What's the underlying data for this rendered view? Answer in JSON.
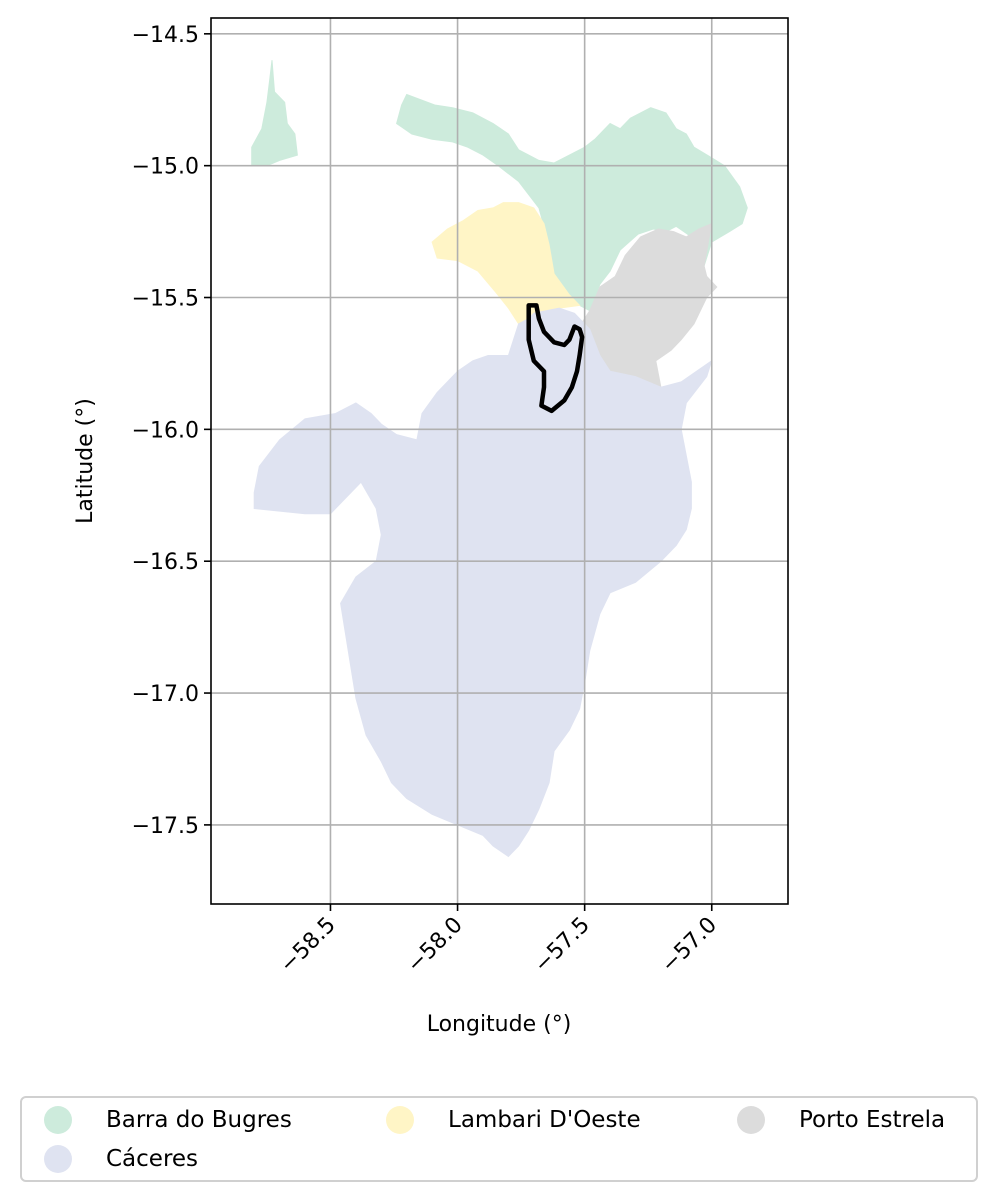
{
  "map": {
    "xlabel": "Longitude (°)",
    "ylabel": "Latitude (°)",
    "xlim": [
      -58.97,
      -56.7
    ],
    "ylim": [
      -17.8,
      -14.44
    ],
    "grid": true,
    "x_ticks": [
      {
        "value": -58.5,
        "label": "−58.5"
      },
      {
        "value": -58.0,
        "label": "−58.0"
      },
      {
        "value": -57.5,
        "label": "−57.5"
      },
      {
        "value": -57.0,
        "label": "−57.0"
      }
    ],
    "y_ticks": [
      {
        "value": -14.5,
        "label": "−14.5"
      },
      {
        "value": -15.0,
        "label": "−15.0"
      },
      {
        "value": -15.5,
        "label": "−15.5"
      },
      {
        "value": -16.0,
        "label": "−16.0"
      },
      {
        "value": -16.5,
        "label": "−16.5"
      },
      {
        "value": -17.0,
        "label": "−17.0"
      },
      {
        "value": -17.5,
        "label": "−17.5"
      }
    ],
    "regions": [
      {
        "name": "Barra do Bugres",
        "color": "#cdebdc",
        "polygons": [
          [
            [
              -58.73,
              -14.6
            ],
            [
              -58.72,
              -14.72
            ],
            [
              -58.68,
              -14.76
            ],
            [
              -58.67,
              -14.84
            ],
            [
              -58.64,
              -14.88
            ],
            [
              -58.63,
              -14.96
            ],
            [
              -58.7,
              -14.98
            ],
            [
              -58.75,
              -15.0
            ],
            [
              -58.81,
              -15.0
            ],
            [
              -58.81,
              -14.93
            ],
            [
              -58.77,
              -14.86
            ],
            [
              -58.75,
              -14.76
            ],
            [
              -58.74,
              -14.68
            ]
          ],
          [
            [
              -58.2,
              -14.73
            ],
            [
              -58.09,
              -14.77
            ],
            [
              -58.02,
              -14.78
            ],
            [
              -57.94,
              -14.8
            ],
            [
              -57.86,
              -14.84
            ],
            [
              -57.8,
              -14.88
            ],
            [
              -57.76,
              -14.94
            ],
            [
              -57.72,
              -14.96
            ],
            [
              -57.68,
              -14.98
            ],
            [
              -57.62,
              -14.99
            ],
            [
              -57.56,
              -14.96
            ],
            [
              -57.5,
              -14.93
            ],
            [
              -57.46,
              -14.9
            ],
            [
              -57.4,
              -14.84
            ],
            [
              -57.36,
              -14.86
            ],
            [
              -57.32,
              -14.82
            ],
            [
              -57.24,
              -14.78
            ],
            [
              -57.18,
              -14.8
            ],
            [
              -57.14,
              -14.86
            ],
            [
              -57.1,
              -14.88
            ],
            [
              -57.07,
              -14.93
            ],
            [
              -57.0,
              -14.97
            ],
            [
              -56.95,
              -15.0
            ],
            [
              -56.89,
              -15.08
            ],
            [
              -56.86,
              -15.16
            ],
            [
              -56.88,
              -15.22
            ],
            [
              -56.93,
              -15.25
            ],
            [
              -57.0,
              -15.29
            ],
            [
              -57.03,
              -15.38
            ],
            [
              -57.08,
              -15.27
            ],
            [
              -57.14,
              -15.23
            ],
            [
              -57.18,
              -15.25
            ],
            [
              -57.23,
              -15.24
            ],
            [
              -57.29,
              -15.26
            ],
            [
              -57.36,
              -15.32
            ],
            [
              -57.4,
              -15.4
            ],
            [
              -57.44,
              -15.45
            ],
            [
              -57.48,
              -15.55
            ],
            [
              -57.52,
              -15.53
            ],
            [
              -57.56,
              -15.49
            ],
            [
              -57.62,
              -15.41
            ],
            [
              -57.64,
              -15.3
            ],
            [
              -57.68,
              -15.16
            ],
            [
              -57.76,
              -15.06
            ],
            [
              -57.84,
              -15.0
            ],
            [
              -57.9,
              -14.96
            ],
            [
              -57.96,
              -14.93
            ],
            [
              -58.02,
              -14.91
            ],
            [
              -58.1,
              -14.9
            ],
            [
              -58.18,
              -14.88
            ],
            [
              -58.24,
              -14.84
            ],
            [
              -58.22,
              -14.77
            ]
          ]
        ]
      },
      {
        "name": "Lambari D'Oeste",
        "color": "#fff5c6",
        "polygons": [
          [
            [
              -57.82,
              -15.14
            ],
            [
              -57.76,
              -15.14
            ],
            [
              -57.7,
              -15.16
            ],
            [
              -57.66,
              -15.22
            ],
            [
              -57.64,
              -15.3
            ],
            [
              -57.62,
              -15.41
            ],
            [
              -57.56,
              -15.49
            ],
            [
              -57.52,
              -15.53
            ],
            [
              -57.6,
              -15.54
            ],
            [
              -57.66,
              -15.56
            ],
            [
              -57.7,
              -15.58
            ],
            [
              -57.74,
              -15.6
            ],
            [
              -57.77,
              -15.72
            ],
            [
              -57.76,
              -15.6
            ],
            [
              -57.8,
              -15.54
            ],
            [
              -57.85,
              -15.48
            ],
            [
              -57.92,
              -15.4
            ],
            [
              -58.0,
              -15.36
            ],
            [
              -58.08,
              -15.35
            ],
            [
              -58.1,
              -15.29
            ],
            [
              -58.04,
              -15.24
            ],
            [
              -57.98,
              -15.21
            ],
            [
              -57.92,
              -15.17
            ],
            [
              -57.86,
              -15.16
            ]
          ]
        ]
      },
      {
        "name": "Porto Estrela",
        "color": "#dcdcdc",
        "polygons": [
          [
            [
              -57.03,
              -15.38
            ],
            [
              -57.0,
              -15.22
            ],
            [
              -57.05,
              -15.24
            ],
            [
              -57.1,
              -15.27
            ],
            [
              -57.15,
              -15.25
            ],
            [
              -57.21,
              -15.24
            ],
            [
              -57.28,
              -15.27
            ],
            [
              -57.34,
              -15.34
            ],
            [
              -57.38,
              -15.42
            ],
            [
              -57.44,
              -15.46
            ],
            [
              -57.48,
              -15.55
            ],
            [
              -57.52,
              -15.61
            ],
            [
              -57.5,
              -15.68
            ],
            [
              -57.46,
              -15.74
            ],
            [
              -57.4,
              -15.78
            ],
            [
              -57.32,
              -15.8
            ],
            [
              -57.26,
              -15.82
            ],
            [
              -57.2,
              -15.84
            ],
            [
              -57.22,
              -15.74
            ],
            [
              -57.16,
              -15.7
            ],
            [
              -57.12,
              -15.66
            ],
            [
              -57.07,
              -15.6
            ],
            [
              -57.02,
              -15.5
            ],
            [
              -56.98,
              -15.46
            ],
            [
              -57.02,
              -15.42
            ]
          ]
        ]
      },
      {
        "name": "Cáceres",
        "color": "#dfe3f1",
        "polygons": [
          [
            [
              -57.7,
              -15.56
            ],
            [
              -57.6,
              -15.54
            ],
            [
              -57.54,
              -15.56
            ],
            [
              -57.48,
              -15.62
            ],
            [
              -57.44,
              -15.72
            ],
            [
              -57.4,
              -15.78
            ],
            [
              -57.3,
              -15.8
            ],
            [
              -57.2,
              -15.84
            ],
            [
              -57.12,
              -15.82
            ],
            [
              -57.06,
              -15.78
            ],
            [
              -57.0,
              -15.74
            ],
            [
              -57.02,
              -15.8
            ],
            [
              -57.1,
              -15.9
            ],
            [
              -57.12,
              -16.0
            ],
            [
              -57.1,
              -16.1
            ],
            [
              -57.08,
              -16.2
            ],
            [
              -57.08,
              -16.3
            ],
            [
              -57.1,
              -16.38
            ],
            [
              -57.14,
              -16.44
            ],
            [
              -57.2,
              -16.5
            ],
            [
              -57.3,
              -16.58
            ],
            [
              -57.4,
              -16.62
            ],
            [
              -57.44,
              -16.7
            ],
            [
              -57.48,
              -16.84
            ],
            [
              -57.5,
              -16.96
            ],
            [
              -57.52,
              -17.06
            ],
            [
              -57.56,
              -17.14
            ],
            [
              -57.62,
              -17.22
            ],
            [
              -57.64,
              -17.34
            ],
            [
              -57.68,
              -17.44
            ],
            [
              -57.72,
              -17.52
            ],
            [
              -57.76,
              -17.58
            ],
            [
              -57.8,
              -17.62
            ],
            [
              -57.86,
              -17.58
            ],
            [
              -57.9,
              -17.54
            ],
            [
              -58.0,
              -17.5
            ],
            [
              -58.1,
              -17.46
            ],
            [
              -58.2,
              -17.4
            ],
            [
              -58.26,
              -17.34
            ],
            [
              -58.3,
              -17.26
            ],
            [
              -58.36,
              -17.16
            ],
            [
              -58.4,
              -17.02
            ],
            [
              -58.42,
              -16.9
            ],
            [
              -58.44,
              -16.78
            ],
            [
              -58.46,
              -16.66
            ],
            [
              -58.4,
              -16.56
            ],
            [
              -58.32,
              -16.5
            ],
            [
              -58.3,
              -16.4
            ],
            [
              -58.32,
              -16.3
            ],
            [
              -58.38,
              -16.2
            ],
            [
              -58.5,
              -16.32
            ],
            [
              -58.6,
              -16.32
            ],
            [
              -58.8,
              -16.3
            ],
            [
              -58.8,
              -16.24
            ],
            [
              -58.78,
              -16.14
            ],
            [
              -58.7,
              -16.04
            ],
            [
              -58.6,
              -15.96
            ],
            [
              -58.48,
              -15.94
            ],
            [
              -58.4,
              -15.9
            ],
            [
              -58.34,
              -15.94
            ],
            [
              -58.3,
              -15.98
            ],
            [
              -58.24,
              -16.02
            ],
            [
              -58.16,
              -16.04
            ],
            [
              -58.14,
              -15.94
            ],
            [
              -58.08,
              -15.86
            ],
            [
              -58.04,
              -15.82
            ],
            [
              -58.0,
              -15.78
            ],
            [
              -57.94,
              -15.74
            ],
            [
              -57.88,
              -15.72
            ],
            [
              -57.8,
              -15.72
            ],
            [
              -57.76,
              -15.6
            ],
            [
              -57.72,
              -15.58
            ]
          ]
        ]
      }
    ],
    "highlight_outline": [
      [
        -57.72,
        -15.53
      ],
      [
        -57.69,
        -15.53
      ],
      [
        -57.68,
        -15.58
      ],
      [
        -57.66,
        -15.63
      ],
      [
        -57.62,
        -15.67
      ],
      [
        -57.58,
        -15.68
      ],
      [
        -57.56,
        -15.66
      ],
      [
        -57.54,
        -15.61
      ],
      [
        -57.52,
        -15.62
      ],
      [
        -57.51,
        -15.65
      ],
      [
        -57.52,
        -15.72
      ],
      [
        -57.53,
        -15.78
      ],
      [
        -57.55,
        -15.84
      ],
      [
        -57.58,
        -15.89
      ],
      [
        -57.63,
        -15.93
      ],
      [
        -57.67,
        -15.91
      ],
      [
        -57.66,
        -15.84
      ],
      [
        -57.66,
        -15.78
      ],
      [
        -57.7,
        -15.74
      ],
      [
        -57.72,
        -15.66
      ]
    ]
  },
  "legend": {
    "placement": "below",
    "items": [
      {
        "label": "Barra do Bugres",
        "color": "#cdebdc"
      },
      {
        "label": "Lambari D'Oeste",
        "color": "#fff5c6"
      },
      {
        "label": "Porto Estrela",
        "color": "#dcdcdc"
      },
      {
        "label": "Cáceres",
        "color": "#dfe3f1"
      }
    ]
  }
}
